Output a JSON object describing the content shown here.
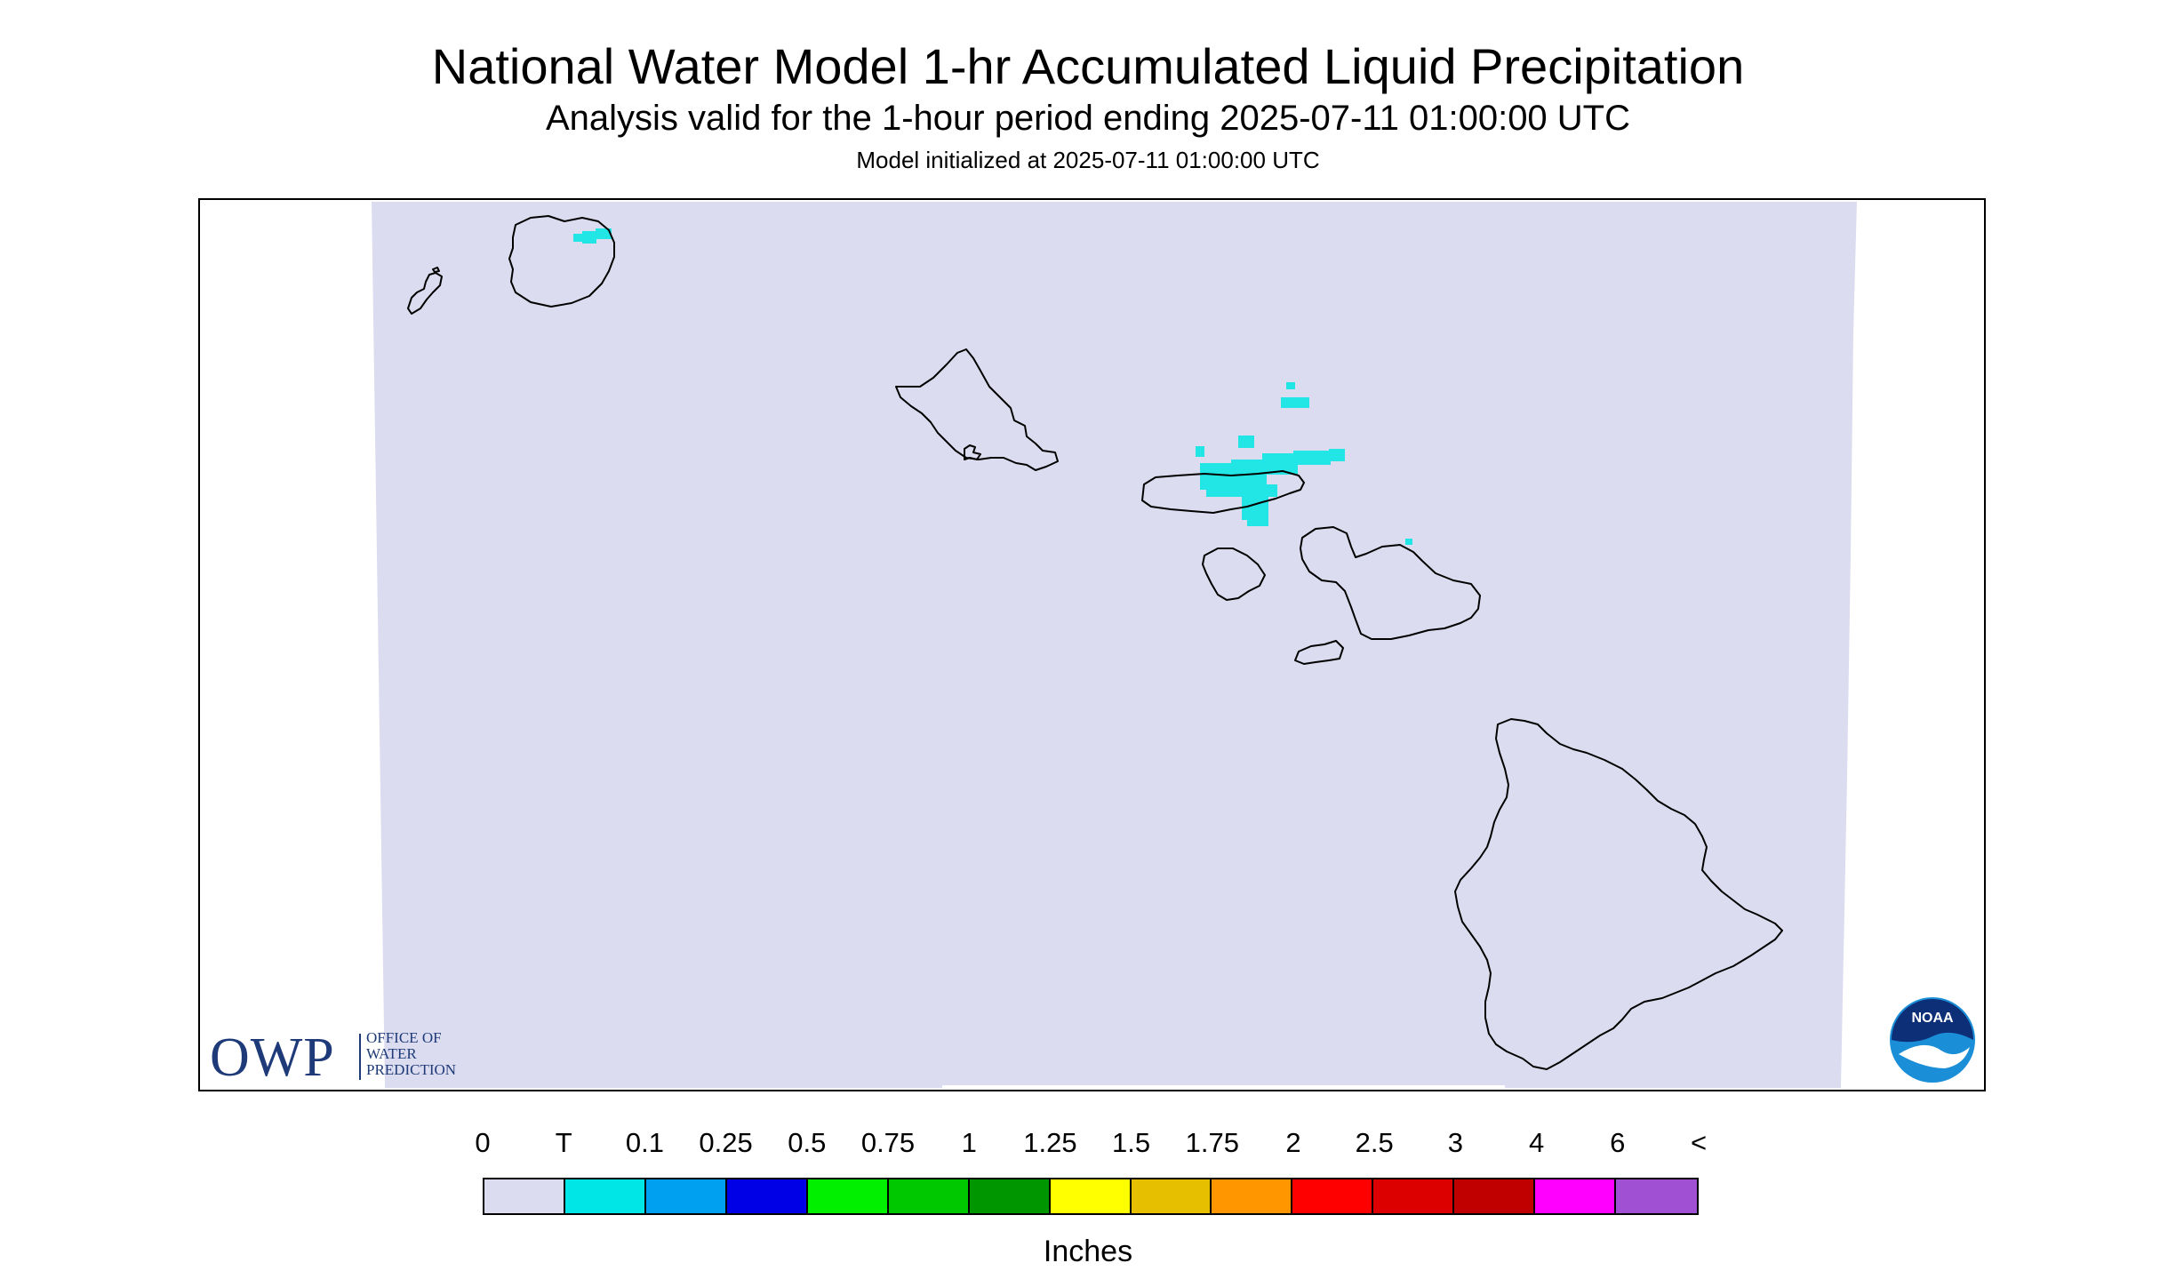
{
  "header": {
    "title": "National Water Model 1-hr Accumulated Liquid Precipitation",
    "subtitle": "Analysis valid for the 1-hour period ending 2025-07-11 01:00:00 UTC",
    "init": "Model initialized at 2025-07-11 01:00:00 UTC"
  },
  "map": {
    "domain_color": "#dcdcf0",
    "coastline_color": "#000000",
    "precip_color": "#22e6e6",
    "icons": [
      "owp-logo",
      "noaa-logo"
    ]
  },
  "logos": {
    "owp_big": "OWP",
    "owp_line1": "OFFICE OF",
    "owp_line2": "WATER",
    "owp_line3": "PREDICTION",
    "noaa_text": "NOAA"
  },
  "legend": {
    "labels": [
      "0",
      "T",
      "0.1",
      "0.25",
      "0.5",
      "0.75",
      "1",
      "1.25",
      "1.5",
      "1.75",
      "2",
      "2.5",
      "3",
      "4",
      "6",
      "<"
    ],
    "colors": [
      "#dcdcf0",
      "#00e6e6",
      "#00a0f0",
      "#0000e6",
      "#00f000",
      "#00c800",
      "#009600",
      "#ffff00",
      "#e6c000",
      "#ff9600",
      "#ff0000",
      "#dc0000",
      "#c00000",
      "#ff00ff",
      "#a050d2"
    ],
    "units": "Inches"
  }
}
